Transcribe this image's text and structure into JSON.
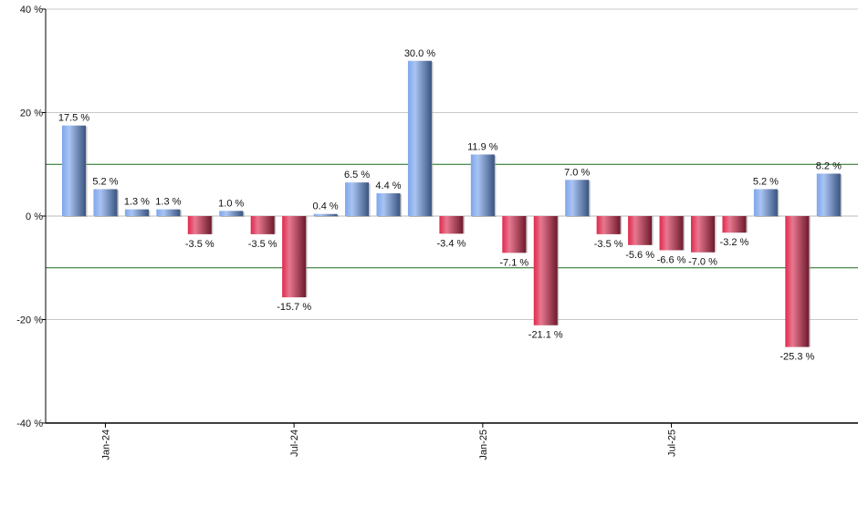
{
  "chart_data": {
    "type": "bar",
    "title": "",
    "xlabel": "",
    "ylabel": "",
    "ylim": [
      -40,
      40
    ],
    "yticks": [
      -40,
      -20,
      0,
      20,
      40
    ],
    "ytick_labels": [
      "-40 %",
      "-20 %",
      "0 %",
      "20 %",
      "40 %"
    ],
    "reference_lines": [
      10,
      -10
    ],
    "grid": true,
    "categories": [
      "Dec-23",
      "Jan-24",
      "Feb-24",
      "Mar-24",
      "Apr-24",
      "May-24",
      "Jun-24",
      "Jul-24",
      "Aug-24",
      "Sep-24",
      "Oct-24",
      "Nov-24",
      "Dec-24",
      "Jan-25",
      "Feb-25",
      "Mar-25",
      "Apr-25",
      "May-25",
      "Jun-25",
      "Jul-25",
      "Aug-25",
      "Sep-25",
      "Oct-25",
      "Nov-25",
      "Dec-25"
    ],
    "xtick_labels": [
      {
        "index": 1,
        "label": "Jan-24"
      },
      {
        "index": 7,
        "label": "Jul-24"
      },
      {
        "index": 13,
        "label": "Jan-25"
      },
      {
        "index": 19,
        "label": "Jul-25"
      }
    ],
    "values": [
      17.5,
      5.2,
      1.3,
      1.3,
      -3.5,
      1.0,
      -3.5,
      -15.7,
      0.4,
      6.5,
      4.4,
      30.0,
      -3.4,
      11.9,
      -7.1,
      -21.1,
      7.0,
      -3.5,
      -5.6,
      -6.6,
      -7.0,
      -3.2,
      5.2,
      -25.3,
      8.2
    ],
    "data_labels": [
      "17.5 %",
      "5.2 %",
      "1.3 %",
      "1.3 %",
      "-3.5 %",
      "1.0 %",
      "-3.5 %",
      "-15.7 %",
      "0.4 %",
      "6.5 %",
      "4.4 %",
      "30.0 %",
      "-3.4 %",
      "11.9 %",
      "-7.1 %",
      "-21.1 %",
      "7.0 %",
      "-3.5 %",
      "-5.6 %",
      "-6.6 %",
      "-7.0 %",
      "-3.2 %",
      "5.2 %",
      "-25.3 %",
      "8.2 %"
    ],
    "colors": {
      "positive": "#7ea6ec",
      "positive_dark": "#3a5480",
      "negative": "#e0284e",
      "negative_dark": "#6e1a2c",
      "reference_line": "#1a6b1a",
      "grid": "#c8c8c8"
    }
  }
}
